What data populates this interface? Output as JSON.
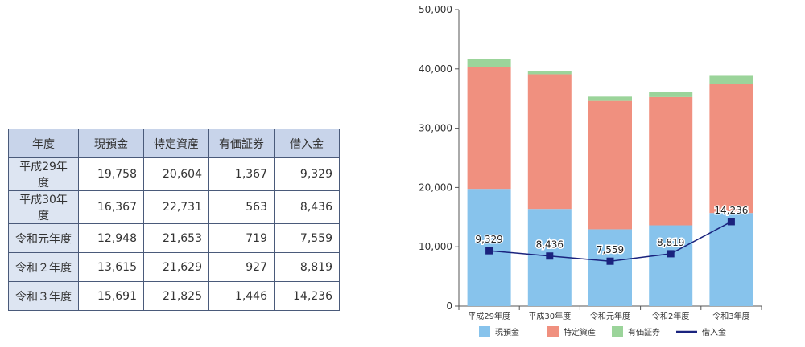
{
  "table": {
    "headers": [
      "年度",
      "現預金",
      "特定資産",
      "有価証券",
      "借入金"
    ],
    "rows": [
      [
        "平成29年度",
        "19,758",
        "20,604",
        "1,367",
        "9,329"
      ],
      [
        "平成30年度",
        "16,367",
        "22,731",
        "563",
        "8,436"
      ],
      [
        "令和元年度",
        "12,948",
        "21,653",
        "719",
        "7,559"
      ],
      [
        "令和２年度",
        "13,615",
        "21,629",
        "927",
        "8,819"
      ],
      [
        "令和３年度",
        "15,691",
        "21,825",
        "1,446",
        "14,236"
      ]
    ]
  },
  "chart_data": {
    "type": "bar",
    "stacked": true,
    "categories": [
      "平成29年度",
      "平成30年度",
      "令和元年度",
      "令和2年度",
      "令和3年度"
    ],
    "series": [
      {
        "name": "現預金",
        "kind": "bar",
        "color": "#87c3ec",
        "values": [
          19758,
          16367,
          12948,
          13615,
          15691
        ]
      },
      {
        "name": "特定資産",
        "kind": "bar",
        "color": "#f0907f",
        "values": [
          20604,
          22731,
          21653,
          21629,
          21825
        ]
      },
      {
        "name": "有価証券",
        "kind": "bar",
        "color": "#9bd49a",
        "values": [
          1367,
          563,
          719,
          927,
          1446
        ]
      },
      {
        "name": "借入金",
        "kind": "line",
        "color": "#1a237e",
        "values": [
          9329,
          8436,
          7559,
          8819,
          14236
        ],
        "labels": [
          "9,329",
          "8,436",
          "7,559",
          "8,819",
          "14,236"
        ]
      }
    ],
    "ylim": [
      0,
      50000
    ],
    "yticks": [
      0,
      10000,
      20000,
      30000,
      40000,
      50000
    ],
    "ytick_labels": [
      "0",
      "10,000",
      "20,000",
      "30,000",
      "40,000",
      "50,000"
    ],
    "legend_position": "bottom"
  }
}
